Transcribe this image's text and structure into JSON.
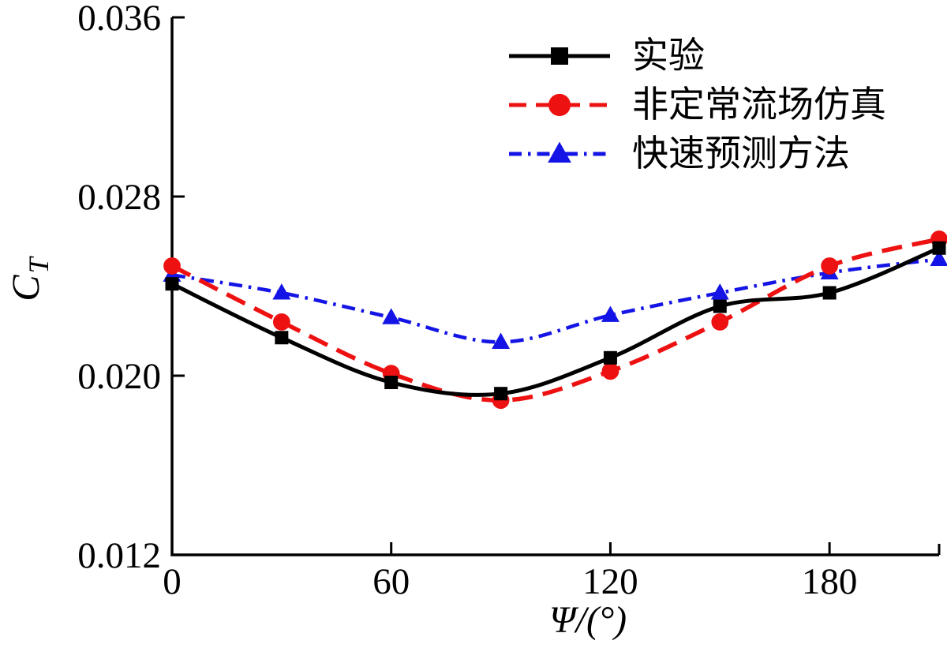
{
  "figure": {
    "background": "#ffffff",
    "xlabel": "Ψ/(°)",
    "ylabel_main": "C",
    "ylabel_sub": "T"
  },
  "legend": {
    "position": "upper-right",
    "items": [
      {
        "label": "实验"
      },
      {
        "label": "非定常流场仿真"
      },
      {
        "label": "快速预测方法"
      }
    ]
  },
  "chart_data": {
    "type": "line",
    "title": "",
    "xlabel": "Ψ/(°)",
    "ylabel": "C_T",
    "x": [
      0,
      30,
      60,
      90,
      120,
      150,
      180,
      210
    ],
    "series": [
      {
        "name": "实验",
        "color": "#000000",
        "line_style": "solid",
        "line_width": 5,
        "marker": "square",
        "values": [
          0.0241,
          0.0217,
          0.0197,
          0.0192,
          0.0208,
          0.0231,
          0.0237,
          0.0257
        ]
      },
      {
        "name": "非定常流场仿真",
        "color": "#ee1111",
        "line_style": "dashed",
        "line_width": 5.5,
        "marker": "circle",
        "values": [
          0.0249,
          0.0224,
          0.0201,
          0.0189,
          0.0202,
          0.0224,
          0.0249,
          0.0261
        ]
      },
      {
        "name": "快速预测方法",
        "color": "#1414e6",
        "line_style": "dashdot",
        "line_width": 4.5,
        "marker": "triangle",
        "values": [
          0.0245,
          0.0237,
          0.0226,
          0.0215,
          0.0227,
          0.0237,
          0.0246,
          0.0252
        ]
      }
    ],
    "xlim": [
      0,
      210
    ],
    "ylim": [
      0.012,
      0.036
    ],
    "x_ticks": [
      0,
      60,
      120,
      180
    ],
    "x_tick_labels": [
      "0",
      "60",
      "120",
      "180"
    ],
    "x_minor_ticks": [
      210
    ],
    "y_ticks": [
      0.012,
      0.02,
      0.028,
      0.036
    ],
    "y_tick_labels": [
      "0.012",
      "0.020",
      "0.028",
      "0.036"
    ],
    "grid": false,
    "legend_position": "upper right"
  }
}
